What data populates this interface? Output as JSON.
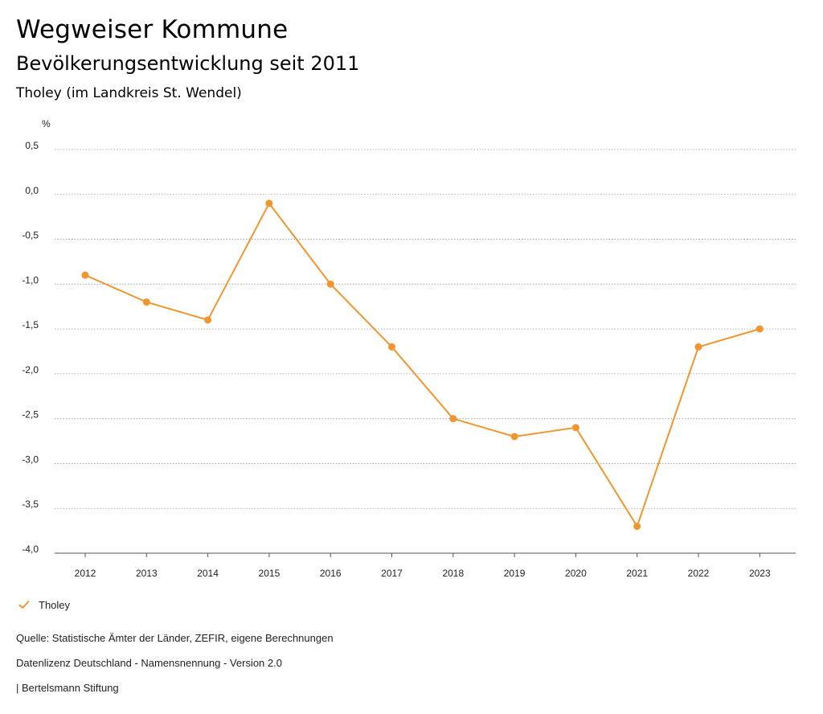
{
  "header": {
    "title": "Wegweiser Kommune",
    "subtitle": "Bevölkerungsentwicklung seit 2011",
    "region": "Tholey (im Landkreis St. Wendel)"
  },
  "legend": {
    "series_label": "Tholey"
  },
  "footer": {
    "source": "Quelle: Statistische Ämter der Länder, ZEFIR, eigene Berechnungen",
    "license": "Datenlizenz Deutschland - Namensnennung - Version 2.0",
    "publisher": "| Bertelsmann Stiftung"
  },
  "colors": {
    "series": "#f0962f",
    "grid": "#9a9a9a",
    "axis": "#555555"
  },
  "chart_data": {
    "type": "line",
    "title": "Bevölkerungsentwicklung seit 2011",
    "ylabel": "%",
    "xlabel": "",
    "categories": [
      "2012",
      "2013",
      "2014",
      "2015",
      "2016",
      "2017",
      "2018",
      "2019",
      "2020",
      "2021",
      "2022",
      "2023"
    ],
    "series": [
      {
        "name": "Tholey",
        "values": [
          -0.9,
          -1.2,
          -1.4,
          -0.1,
          -1.0,
          -1.7,
          -2.5,
          -2.7,
          -2.6,
          -3.7,
          -1.7,
          -1.5
        ]
      }
    ],
    "ylim": [
      -4.0,
      0.5
    ],
    "yticks": [
      0.5,
      0.0,
      -0.5,
      -1.0,
      -1.5,
      -2.0,
      -2.5,
      -3.0,
      -3.5,
      -4.0
    ],
    "ytick_labels": [
      "0,5",
      "0,0",
      "-0,5",
      "-1,0",
      "-1,5",
      "-2,0",
      "-2,5",
      "-3,0",
      "-3,5",
      "-4,0"
    ],
    "grid": true,
    "legend_position": "bottom-left"
  }
}
